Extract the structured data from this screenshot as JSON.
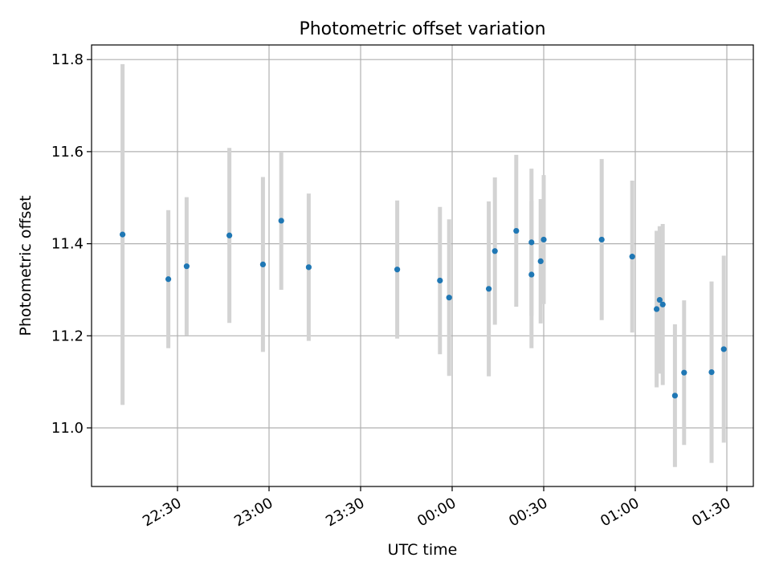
{
  "chart_data": {
    "type": "scatter",
    "title": "Photometric offset variation",
    "xlabel": "UTC time",
    "ylabel": "Photometric offset",
    "x_tick_labels": [
      "22:30",
      "23:00",
      "23:30",
      "00:00",
      "00:30",
      "01:00",
      "01:30"
    ],
    "y_tick_labels": [
      "11.0",
      "11.2",
      "11.4",
      "11.6",
      "11.8"
    ],
    "grid": true,
    "colors": {
      "point": "#1f77b4",
      "errorbar": "#d3d3d3",
      "grid": "#b0b0b0"
    },
    "points": [
      {
        "time": "22:12",
        "y": 11.42,
        "err": 0.37
      },
      {
        "time": "22:27",
        "y": 11.323,
        "err": 0.15
      },
      {
        "time": "22:33",
        "y": 11.351,
        "err": 0.15
      },
      {
        "time": "22:47",
        "y": 11.418,
        "err": 0.19
      },
      {
        "time": "22:58",
        "y": 11.355,
        "err": 0.19
      },
      {
        "time": "23:04",
        "y": 11.45,
        "err": 0.15
      },
      {
        "time": "23:13",
        "y": 11.349,
        "err": 0.16
      },
      {
        "time": "23:42",
        "y": 11.344,
        "err": 0.15
      },
      {
        "time": "23:56",
        "y": 11.32,
        "err": 0.16
      },
      {
        "time": "23:59",
        "y": 11.283,
        "err": 0.17
      },
      {
        "time": "00:12",
        "y": 11.302,
        "err": 0.19
      },
      {
        "time": "00:14",
        "y": 11.384,
        "err": 0.16
      },
      {
        "time": "00:21",
        "y": 11.428,
        "err": 0.165
      },
      {
        "time": "00:26",
        "y": 11.403,
        "err": 0.16
      },
      {
        "time": "00:26",
        "y": 11.333,
        "err": 0.16
      },
      {
        "time": "00:29",
        "y": 11.362,
        "err": 0.135
      },
      {
        "time": "00:30",
        "y": 11.409,
        "err": 0.14
      },
      {
        "time": "00:49",
        "y": 11.409,
        "err": 0.175
      },
      {
        "time": "00:59",
        "y": 11.372,
        "err": 0.165
      },
      {
        "time": "01:07",
        "y": 11.258,
        "err": 0.17
      },
      {
        "time": "01:08",
        "y": 11.278,
        "err": 0.16
      },
      {
        "time": "01:09",
        "y": 11.268,
        "err": 0.175
      },
      {
        "time": "01:13",
        "y": 11.07,
        "err": 0.155
      },
      {
        "time": "01:16",
        "y": 11.12,
        "err": 0.157
      },
      {
        "time": "01:25",
        "y": 11.121,
        "err": 0.197
      },
      {
        "time": "01:29",
        "y": 11.171,
        "err": 0.203
      }
    ]
  }
}
